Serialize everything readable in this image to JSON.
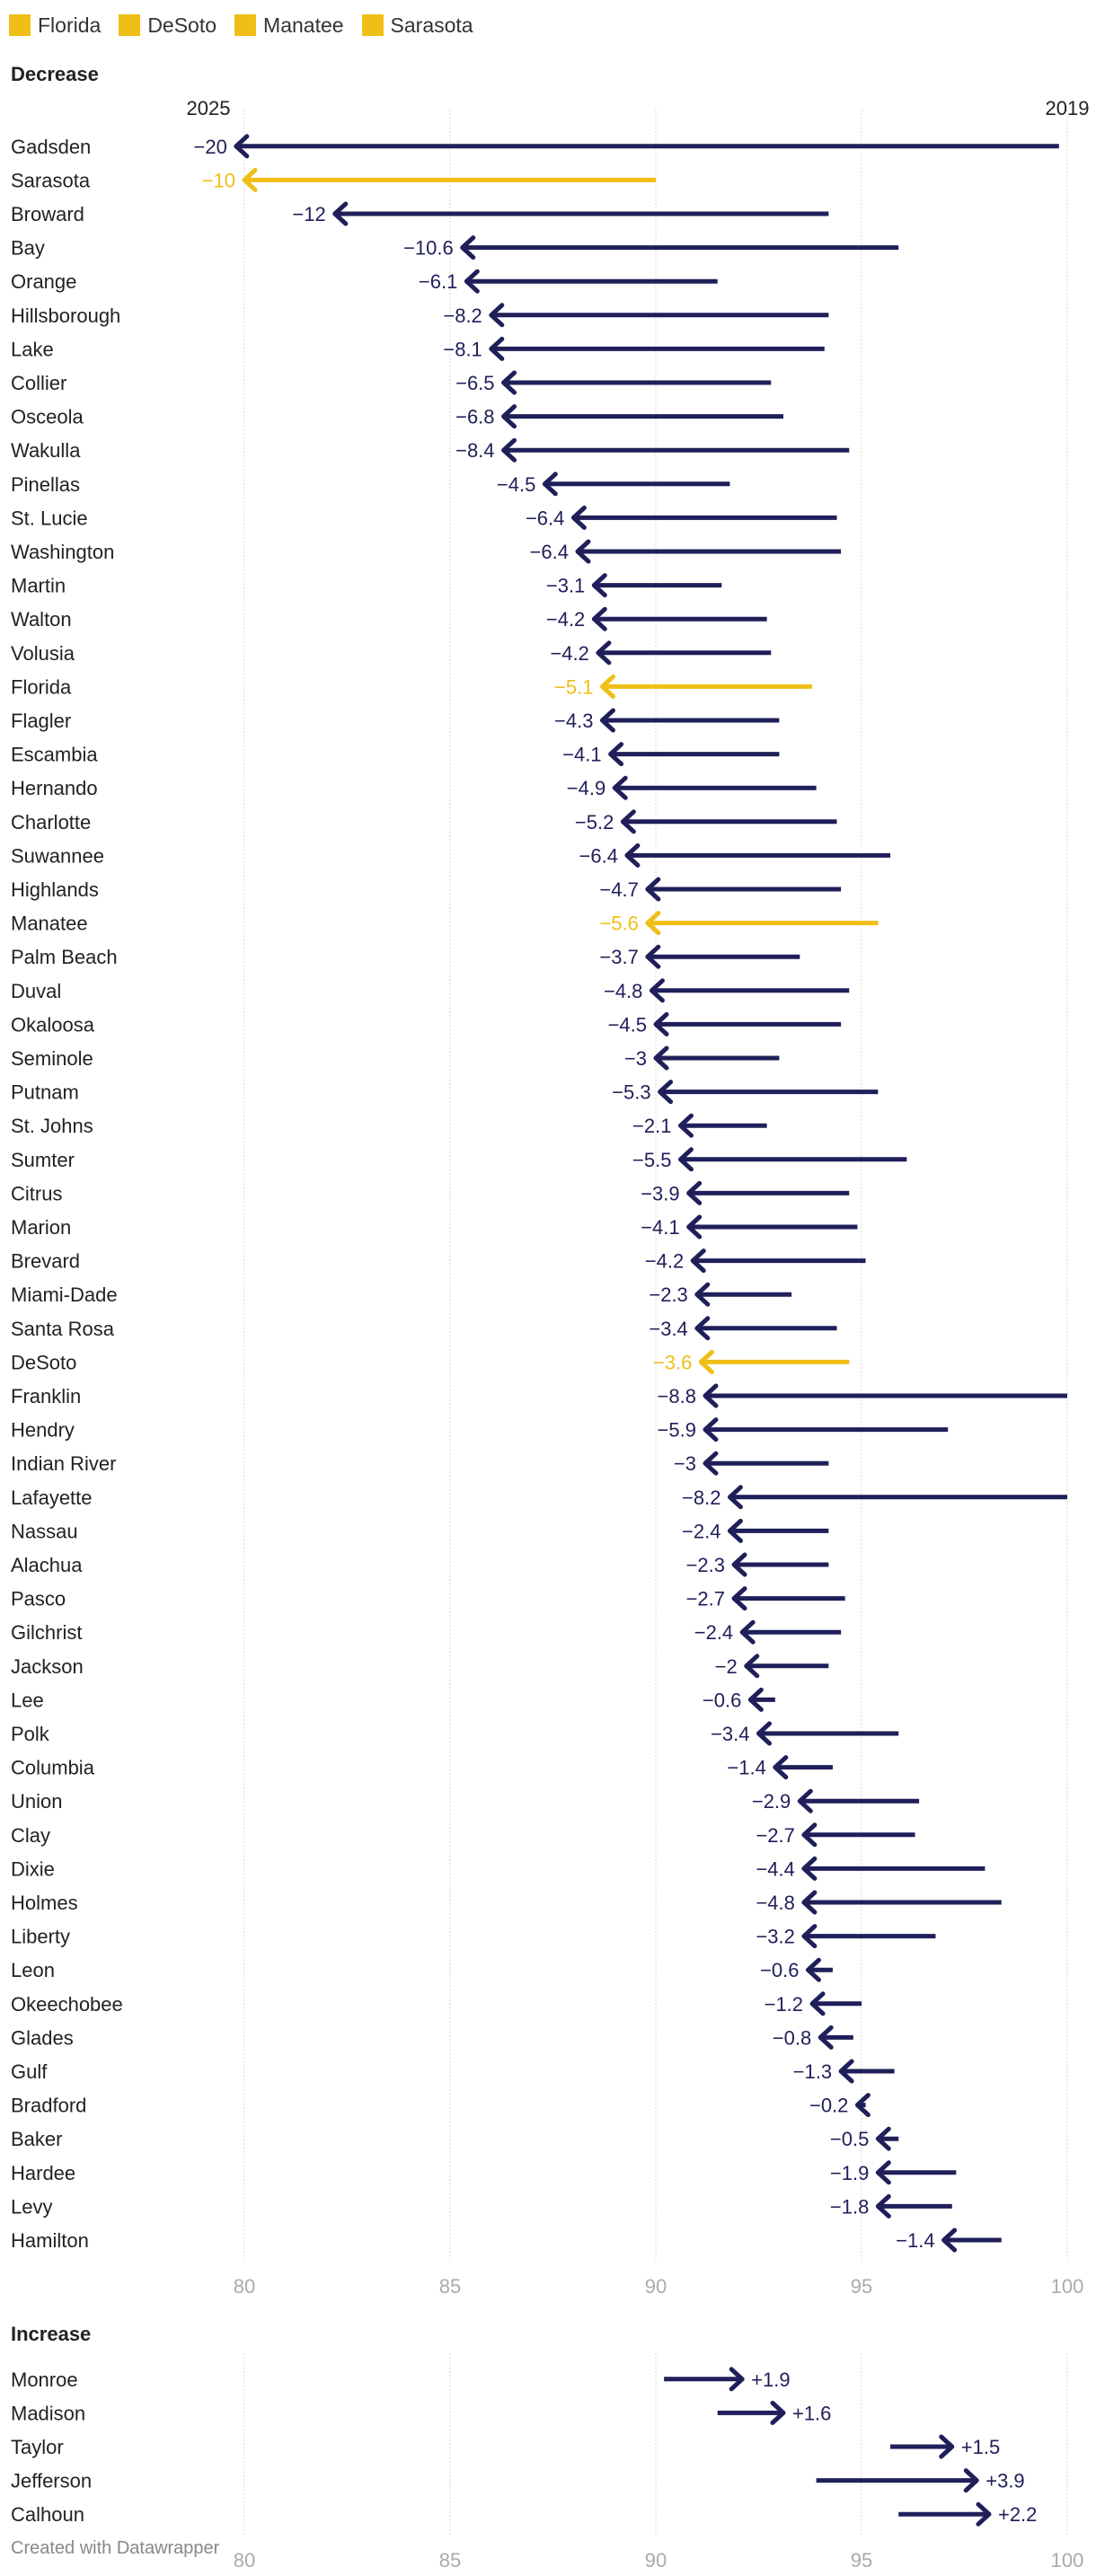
{
  "legend": [
    {
      "label": "Florida",
      "color": "#f0bf17"
    },
    {
      "label": "DeSoto",
      "color": "#f0bf17"
    },
    {
      "label": "Manatee",
      "color": "#f0bf17"
    },
    {
      "label": "Sarasota",
      "color": "#f0bf17"
    }
  ],
  "colors": {
    "default": "#1f1f5a",
    "highlight": "#f0bf17",
    "grid": "#d8d8d8",
    "tick": "#aaaaaa"
  },
  "sections": {
    "decrease": "Decrease",
    "increase": "Increase"
  },
  "footer": "Created with Datawrapper",
  "chart_data": [
    {
      "type": "arrow-range",
      "title": "Decrease",
      "start_year": "2019",
      "end_year": "2025",
      "xlim": [
        78,
        100.5
      ],
      "xticks": [
        80,
        85,
        90,
        95,
        100
      ],
      "rows": [
        {
          "name": "Gadsden",
          "start": 99.8,
          "end": 79.8,
          "label": "−20"
        },
        {
          "name": "Sarasota",
          "start": 90.0,
          "end": 80.0,
          "label": "−10",
          "highlight": true
        },
        {
          "name": "Broward",
          "start": 94.2,
          "end": 82.2,
          "label": "−12"
        },
        {
          "name": "Bay",
          "start": 95.9,
          "end": 85.3,
          "label": "−10.6"
        },
        {
          "name": "Orange",
          "start": 91.5,
          "end": 85.4,
          "label": "−6.1"
        },
        {
          "name": "Hillsborough",
          "start": 94.2,
          "end": 86.0,
          "label": "−8.2"
        },
        {
          "name": "Lake",
          "start": 94.1,
          "end": 86.0,
          "label": "−8.1"
        },
        {
          "name": "Collier",
          "start": 92.8,
          "end": 86.3,
          "label": "−6.5"
        },
        {
          "name": "Osceola",
          "start": 93.1,
          "end": 86.3,
          "label": "−6.8"
        },
        {
          "name": "Wakulla",
          "start": 94.7,
          "end": 86.3,
          "label": "−8.4"
        },
        {
          "name": "Pinellas",
          "start": 91.8,
          "end": 87.3,
          "label": "−4.5"
        },
        {
          "name": "St. Lucie",
          "start": 94.4,
          "end": 88.0,
          "label": "−6.4"
        },
        {
          "name": "Washington",
          "start": 94.5,
          "end": 88.1,
          "label": "−6.4"
        },
        {
          "name": "Martin",
          "start": 91.6,
          "end": 88.5,
          "label": "−3.1"
        },
        {
          "name": "Walton",
          "start": 92.7,
          "end": 88.5,
          "label": "−4.2"
        },
        {
          "name": "Volusia",
          "start": 92.8,
          "end": 88.6,
          "label": "−4.2"
        },
        {
          "name": "Florida",
          "start": 93.8,
          "end": 88.7,
          "label": "−5.1",
          "highlight": true
        },
        {
          "name": "Flagler",
          "start": 93.0,
          "end": 88.7,
          "label": "−4.3"
        },
        {
          "name": "Escambia",
          "start": 93.0,
          "end": 88.9,
          "label": "−4.1"
        },
        {
          "name": "Hernando",
          "start": 93.9,
          "end": 89.0,
          "label": "−4.9"
        },
        {
          "name": "Charlotte",
          "start": 94.4,
          "end": 89.2,
          "label": "−5.2"
        },
        {
          "name": "Suwannee",
          "start": 95.7,
          "end": 89.3,
          "label": "−6.4"
        },
        {
          "name": "Highlands",
          "start": 94.5,
          "end": 89.8,
          "label": "−4.7"
        },
        {
          "name": "Manatee",
          "start": 95.4,
          "end": 89.8,
          "label": "−5.6",
          "highlight": true
        },
        {
          "name": "Palm Beach",
          "start": 93.5,
          "end": 89.8,
          "label": "−3.7"
        },
        {
          "name": "Duval",
          "start": 94.7,
          "end": 89.9,
          "label": "−4.8"
        },
        {
          "name": "Okaloosa",
          "start": 94.5,
          "end": 90.0,
          "label": "−4.5"
        },
        {
          "name": "Seminole",
          "start": 93.0,
          "end": 90.0,
          "label": "−3"
        },
        {
          "name": "Putnam",
          "start": 95.4,
          "end": 90.1,
          "label": "−5.3"
        },
        {
          "name": "St. Johns",
          "start": 92.7,
          "end": 90.6,
          "label": "−2.1"
        },
        {
          "name": "Sumter",
          "start": 96.1,
          "end": 90.6,
          "label": "−5.5"
        },
        {
          "name": "Citrus",
          "start": 94.7,
          "end": 90.8,
          "label": "−3.9"
        },
        {
          "name": "Marion",
          "start": 94.9,
          "end": 90.8,
          "label": "−4.1"
        },
        {
          "name": "Brevard",
          "start": 95.1,
          "end": 90.9,
          "label": "−4.2"
        },
        {
          "name": "Miami-Dade",
          "start": 93.3,
          "end": 91.0,
          "label": "−2.3"
        },
        {
          "name": "Santa Rosa",
          "start": 94.4,
          "end": 91.0,
          "label": "−3.4"
        },
        {
          "name": "DeSoto",
          "start": 94.7,
          "end": 91.1,
          "label": "−3.6",
          "highlight": true
        },
        {
          "name": "Franklin",
          "start": 100.0,
          "end": 91.2,
          "label": "−8.8"
        },
        {
          "name": "Hendry",
          "start": 97.1,
          "end": 91.2,
          "label": "−5.9"
        },
        {
          "name": "Indian River",
          "start": 94.2,
          "end": 91.2,
          "label": "−3"
        },
        {
          "name": "Lafayette",
          "start": 100.0,
          "end": 91.8,
          "label": "−8.2"
        },
        {
          "name": "Nassau",
          "start": 94.2,
          "end": 91.8,
          "label": "−2.4"
        },
        {
          "name": "Alachua",
          "start": 94.2,
          "end": 91.9,
          "label": "−2.3"
        },
        {
          "name": "Pasco",
          "start": 94.6,
          "end": 91.9,
          "label": "−2.7"
        },
        {
          "name": "Gilchrist",
          "start": 94.5,
          "end": 92.1,
          "label": "−2.4"
        },
        {
          "name": "Jackson",
          "start": 94.2,
          "end": 92.2,
          "label": "−2"
        },
        {
          "name": "Lee",
          "start": 92.9,
          "end": 92.3,
          "label": "−0.6"
        },
        {
          "name": "Polk",
          "start": 95.9,
          "end": 92.5,
          "label": "−3.4"
        },
        {
          "name": "Columbia",
          "start": 94.3,
          "end": 92.9,
          "label": "−1.4"
        },
        {
          "name": "Union",
          "start": 96.4,
          "end": 93.5,
          "label": "−2.9"
        },
        {
          "name": "Clay",
          "start": 96.3,
          "end": 93.6,
          "label": "−2.7"
        },
        {
          "name": "Dixie",
          "start": 98.0,
          "end": 93.6,
          "label": "−4.4"
        },
        {
          "name": "Holmes",
          "start": 98.4,
          "end": 93.6,
          "label": "−4.8"
        },
        {
          "name": "Liberty",
          "start": 96.8,
          "end": 93.6,
          "label": "−3.2"
        },
        {
          "name": "Leon",
          "start": 94.3,
          "end": 93.7,
          "label": "−0.6"
        },
        {
          "name": "Okeechobee",
          "start": 95.0,
          "end": 93.8,
          "label": "−1.2"
        },
        {
          "name": "Glades",
          "start": 94.8,
          "end": 94.0,
          "label": "−0.8"
        },
        {
          "name": "Gulf",
          "start": 95.8,
          "end": 94.5,
          "label": "−1.3"
        },
        {
          "name": "Bradford",
          "start": 95.1,
          "end": 94.9,
          "label": "−0.2"
        },
        {
          "name": "Baker",
          "start": 95.9,
          "end": 95.4,
          "label": "−0.5"
        },
        {
          "name": "Hardee",
          "start": 97.3,
          "end": 95.4,
          "label": "−1.9"
        },
        {
          "name": "Levy",
          "start": 97.2,
          "end": 95.4,
          "label": "−1.8"
        },
        {
          "name": "Hamilton",
          "start": 98.4,
          "end": 97.0,
          "label": "−1.4"
        }
      ]
    },
    {
      "type": "arrow-range",
      "title": "Increase",
      "xlim": [
        78,
        100.5
      ],
      "xticks": [
        80,
        85,
        90,
        95,
        100
      ],
      "rows": [
        {
          "name": "Monroe",
          "start": 90.2,
          "end": 92.1,
          "label": "+1.9"
        },
        {
          "name": "Madison",
          "start": 91.5,
          "end": 93.1,
          "label": "+1.6"
        },
        {
          "name": "Taylor",
          "start": 95.7,
          "end": 97.2,
          "label": "+1.5"
        },
        {
          "name": "Jefferson",
          "start": 93.9,
          "end": 97.8,
          "label": "+3.9"
        },
        {
          "name": "Calhoun",
          "start": 95.9,
          "end": 98.1,
          "label": "+2.2"
        }
      ]
    }
  ]
}
